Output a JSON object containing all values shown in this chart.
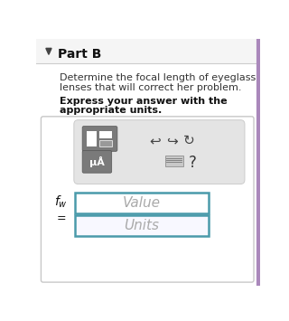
{
  "white": "#ffffff",
  "title": "Part B",
  "body_text1": "Determine the focal length of eyeglass",
  "body_text2": "lenses that will correct her problem.",
  "bold_text1": "Express your answer with the",
  "bold_text2": "appropriate units.",
  "value_placeholder": "Value",
  "units_placeholder": "Units",
  "input_border": "#4a9aaa",
  "placeholder_color": "#aaaaaa",
  "triangle_color": "#444444",
  "header_bg": "#f5f5f5",
  "separator_color": "#cccccc",
  "panel_bg": "#ffffff",
  "toolbar_inner_bg": "#e4e4e4",
  "toolbar_inner_border": "#cccccc",
  "btn_bg": "#7a7a7a",
  "btn_border": "#555555",
  "arrow_color": "#444444",
  "outer_border_color": "#c8c8c8",
  "right_border_color": "#aa88bb",
  "body_bg": "#ffffff"
}
